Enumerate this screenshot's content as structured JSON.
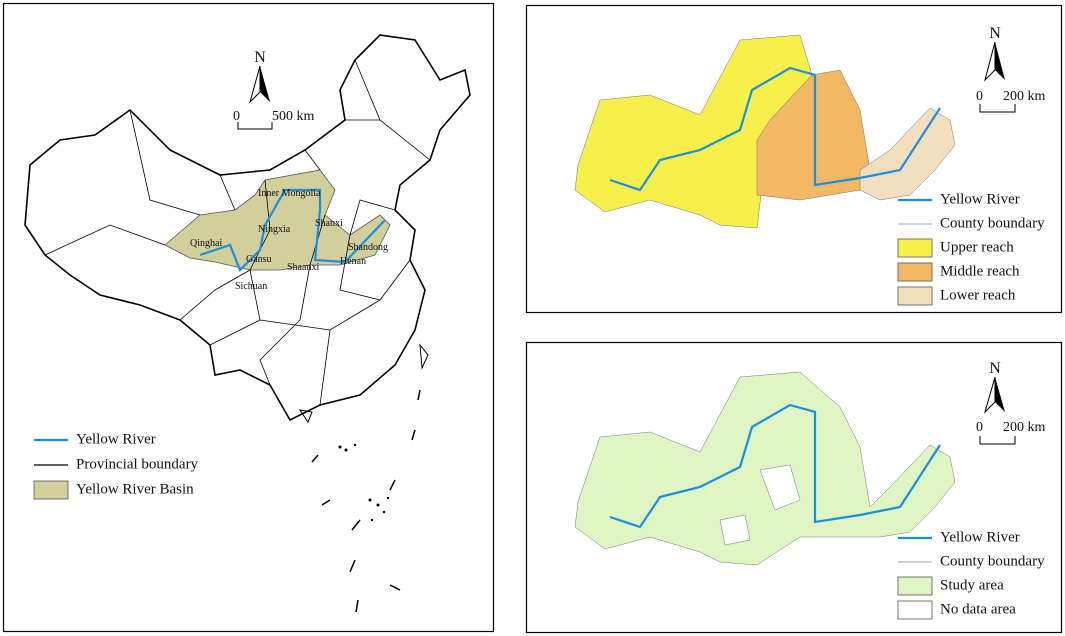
{
  "panels": [
    {
      "north": "N",
      "scale": [
        "0",
        "500 km"
      ],
      "labels": [
        "Inner Mongolia",
        "Ningxia",
        "Shanxi",
        "Shandong",
        "Qinghai",
        "Gansu",
        "Henan",
        "Shaanxi",
        "Sichuan"
      ],
      "legend": [
        {
          "label": "Yellow River",
          "kind": "line",
          "color": "#1a8fe0"
        },
        {
          "label": "Provincial boundary",
          "kind": "line",
          "color": "#000000"
        },
        {
          "label": "Yellow River Basin",
          "kind": "box",
          "color": "#d3cf9c"
        }
      ]
    },
    {
      "north": "N",
      "scale": [
        "0",
        "200 km"
      ],
      "legend": [
        {
          "label": "Yellow River",
          "kind": "line",
          "color": "#1a8fe0"
        },
        {
          "label": "County boundary",
          "kind": "line",
          "color": "#888888"
        },
        {
          "label": "Upper reach",
          "kind": "box",
          "color": "#f8f04a"
        },
        {
          "label": "Middle reach",
          "kind": "box",
          "color": "#f2b864"
        },
        {
          "label": "Lower reach",
          "kind": "box",
          "color": "#f3dfbe"
        }
      ]
    },
    {
      "north": "N",
      "scale": [
        "0",
        "200 km"
      ],
      "legend": [
        {
          "label": "Yellow River",
          "kind": "line",
          "color": "#1a8fe0"
        },
        {
          "label": "County boundary",
          "kind": "line",
          "color": "#888888"
        },
        {
          "label": "Study area",
          "kind": "box",
          "color": "#dff5c4"
        },
        {
          "label": "No data area",
          "kind": "box",
          "color": "#ffffff"
        }
      ]
    }
  ]
}
